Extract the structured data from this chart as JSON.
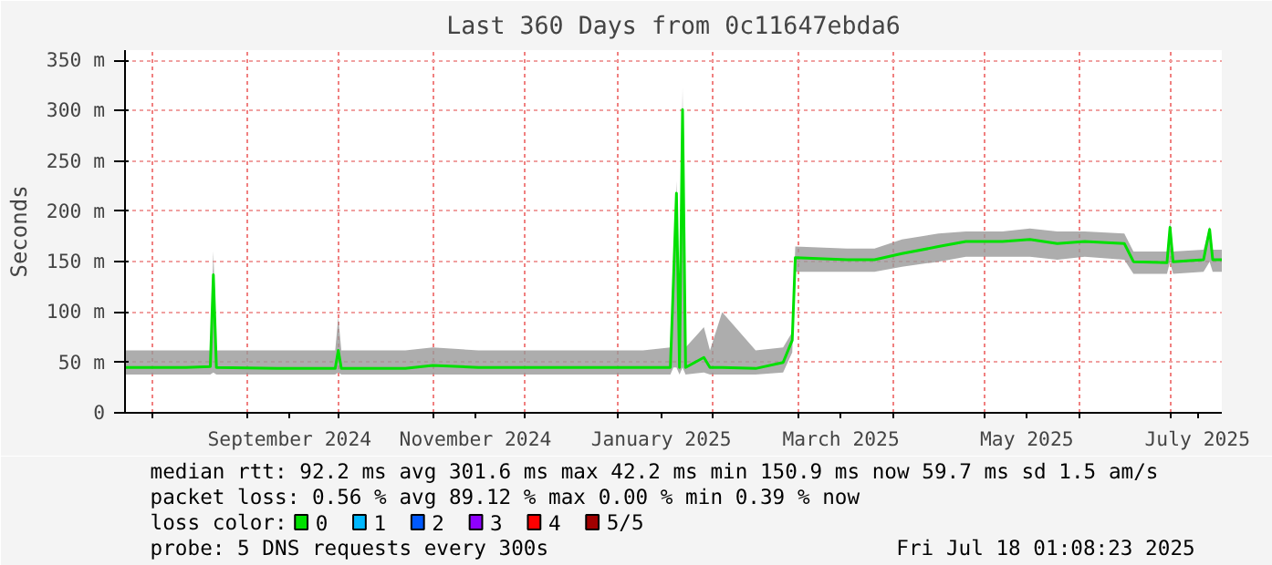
{
  "chart_data": {
    "type": "line",
    "title": "Last 360 Days from 0c11647ebda6",
    "ylabel": "Seconds",
    "x": [
      "2024-07-23",
      "2024-08-12",
      "2024-08-20",
      "2024-08-21",
      "2024-08-22",
      "2024-09-11",
      "2024-09-30",
      "2024-10-01",
      "2024-10-02",
      "2024-10-23",
      "2024-11-01",
      "2024-11-16",
      "2024-11-28",
      "2024-12-22",
      "2025-01-09",
      "2025-01-18",
      "2025-01-19",
      "2025-01-20",
      "2025-01-21",
      "2025-01-22",
      "2025-01-23",
      "2025-01-29",
      "2025-01-31",
      "2025-02-04",
      "2025-02-15",
      "2025-02-24",
      "2025-02-27",
      "2025-02-28",
      "2025-03-17",
      "2025-03-26",
      "2025-04-04",
      "2025-04-16",
      "2025-04-25",
      "2025-05-07",
      "2025-05-16",
      "2025-05-25",
      "2025-06-03",
      "2025-06-16",
      "2025-06-19",
      "2025-06-30",
      "2025-07-01",
      "2025-07-02",
      "2025-07-12",
      "2025-07-14",
      "2025-07-15",
      "2025-07-18"
    ],
    "series": [
      {
        "name": "0",
        "color": "#00e000",
        "values": [
          45,
          45,
          46,
          137,
          45,
          44,
          44,
          62,
          44,
          44,
          47,
          45,
          45,
          45,
          45,
          45,
          130,
          218,
          45,
          301,
          45,
          55,
          45,
          45,
          44,
          50,
          72,
          154,
          152,
          152,
          158,
          165,
          170,
          170,
          172,
          168,
          170,
          168,
          150,
          149,
          184,
          150,
          152,
          182,
          152,
          152
        ],
        "lower": [
          38,
          38,
          38,
          40,
          38,
          38,
          38,
          40,
          38,
          38,
          38,
          38,
          38,
          38,
          38,
          38,
          45,
          45,
          38,
          45,
          38,
          40,
          38,
          38,
          38,
          40,
          60,
          140,
          140,
          140,
          145,
          150,
          155,
          155,
          155,
          152,
          155,
          152,
          138,
          138,
          150,
          138,
          140,
          150,
          140,
          140
        ],
        "upper": [
          62,
          62,
          62,
          160,
          62,
          62,
          62,
          95,
          62,
          62,
          65,
          62,
          62,
          62,
          62,
          65,
          135,
          230,
          65,
          322,
          65,
          85,
          62,
          100,
          62,
          65,
          80,
          165,
          163,
          163,
          172,
          178,
          180,
          180,
          183,
          180,
          180,
          178,
          160,
          160,
          190,
          160,
          162,
          185,
          162,
          162
        ]
      },
      {
        "name": "1",
        "color": "#00b8ff",
        "values": [
          null,
          null,
          null,
          null,
          null,
          null,
          null,
          null,
          null,
          null,
          null,
          null,
          null,
          null,
          null,
          null,
          null,
          null,
          null,
          null,
          null,
          null,
          null,
          null,
          null,
          null,
          null,
          null,
          null,
          null,
          null,
          null,
          null,
          null,
          null,
          null,
          null,
          null,
          null,
          null,
          null,
          null,
          null,
          null,
          null,
          null
        ]
      },
      {
        "name": "2",
        "color": "#0059ff",
        "values": [
          null,
          null,
          null,
          null,
          null,
          null,
          null,
          null,
          null,
          null,
          null,
          null,
          null,
          null,
          null,
          null,
          null,
          null,
          null,
          null,
          null,
          null,
          null,
          null,
          null,
          null,
          null,
          null,
          null,
          null,
          null,
          null,
          null,
          null,
          null,
          null,
          null,
          null,
          null,
          null,
          null,
          null,
          null,
          null,
          null,
          null
        ]
      },
      {
        "name": "3",
        "color": "#8f00ff",
        "values": [
          null,
          null,
          null,
          null,
          null,
          null,
          null,
          null,
          null,
          null,
          null,
          null,
          null,
          null,
          null,
          null,
          null,
          null,
          null,
          null,
          null,
          null,
          null,
          null,
          null,
          null,
          null,
          null,
          null,
          null,
          null,
          null,
          null,
          null,
          null,
          null,
          null,
          null,
          null,
          null,
          null,
          null,
          null,
          null,
          null,
          null
        ]
      },
      {
        "name": "4",
        "color": "#ff0000",
        "values": [
          null,
          null,
          null,
          null,
          null,
          null,
          null,
          null,
          null,
          null,
          null,
          null,
          null,
          null,
          null,
          null,
          null,
          null,
          null,
          null,
          null,
          null,
          null,
          null,
          null,
          null,
          null,
          null,
          null,
          null,
          null,
          null,
          null,
          null,
          null,
          null,
          null,
          null,
          null,
          null,
          null,
          null,
          null,
          null,
          null,
          null
        ]
      },
      {
        "name": "5/5",
        "color": "#a10000",
        "values": [
          null,
          null,
          null,
          null,
          null,
          null,
          null,
          null,
          null,
          null,
          null,
          null,
          null,
          null,
          null,
          null,
          null,
          null,
          null,
          null,
          null,
          null,
          null,
          null,
          null,
          null,
          null,
          null,
          null,
          null,
          null,
          null,
          null,
          null,
          null,
          null,
          null,
          null,
          null,
          null,
          null,
          null,
          null,
          null,
          null,
          null
        ]
      }
    ],
    "legend": "bottom",
    "legend_title": "loss color:",
    "xlim": [
      "2024-07-23",
      "2025-07-18"
    ],
    "xticks": [
      {
        "value": "2024-08-01",
        "label": null
      },
      {
        "value": "2024-09-01",
        "label": null
      },
      {
        "value": "2024-09-15",
        "label": "September 2024"
      },
      {
        "value": "2024-10-01",
        "label": null
      },
      {
        "value": "2024-11-01",
        "label": null
      },
      {
        "value": "2024-11-15",
        "label": "November 2024"
      },
      {
        "value": "2024-12-01",
        "label": null
      },
      {
        "value": "2025-01-01",
        "label": null
      },
      {
        "value": "2025-01-15",
        "label": "January 2025"
      },
      {
        "value": "2025-02-01",
        "label": null
      },
      {
        "value": "2025-03-01",
        "label": null
      },
      {
        "value": "2025-03-15",
        "label": "March 2025"
      },
      {
        "value": "2025-04-01",
        "label": null
      },
      {
        "value": "2025-05-01",
        "label": null
      },
      {
        "value": "2025-05-15",
        "label": "May 2025"
      },
      {
        "value": "2025-06-01",
        "label": null
      },
      {
        "value": "2025-07-01",
        "label": null
      },
      {
        "value": "2025-07-10",
        "label": "July 2025"
      }
    ],
    "ylim": [
      0,
      360
    ],
    "yticks": [
      0,
      {
        "value": 50,
        "label": "50 m"
      },
      {
        "value": 100,
        "label": "100 m"
      },
      {
        "value": 150,
        "label": "150 m"
      },
      {
        "value": 200,
        "label": "200 m"
      },
      {
        "value": 250,
        "label": "250 m"
      },
      {
        "value": 300,
        "label": "300 m"
      },
      {
        "value": 350,
        "label": "350 m"
      }
    ],
    "grid": true,
    "annotations": [
      "median rtt:  92.2 ms avg  301.6 ms max  42.2 ms min  150.9 ms now  59.7 ms sd  1.5  am/s",
      "packet loss: 0.56 % avg  89.12 % max  0.00 % min  0.39 % now",
      "probe:       5 DNS requests every 300s",
      "Fri Jul 18 01:08:23 2025"
    ]
  }
}
